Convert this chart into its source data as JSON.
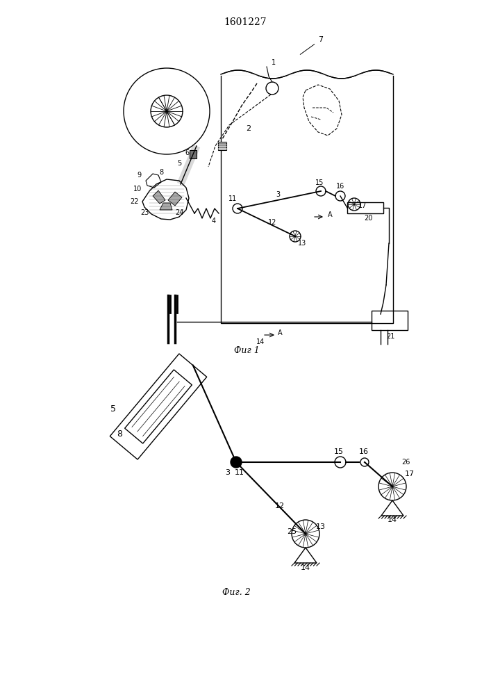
{
  "title": "1601227",
  "fig1_caption": "Фиг 1",
  "fig2_caption": "Фиг. 2",
  "bg_color": "#ffffff",
  "line_color": "#000000",
  "lw": 1.0
}
